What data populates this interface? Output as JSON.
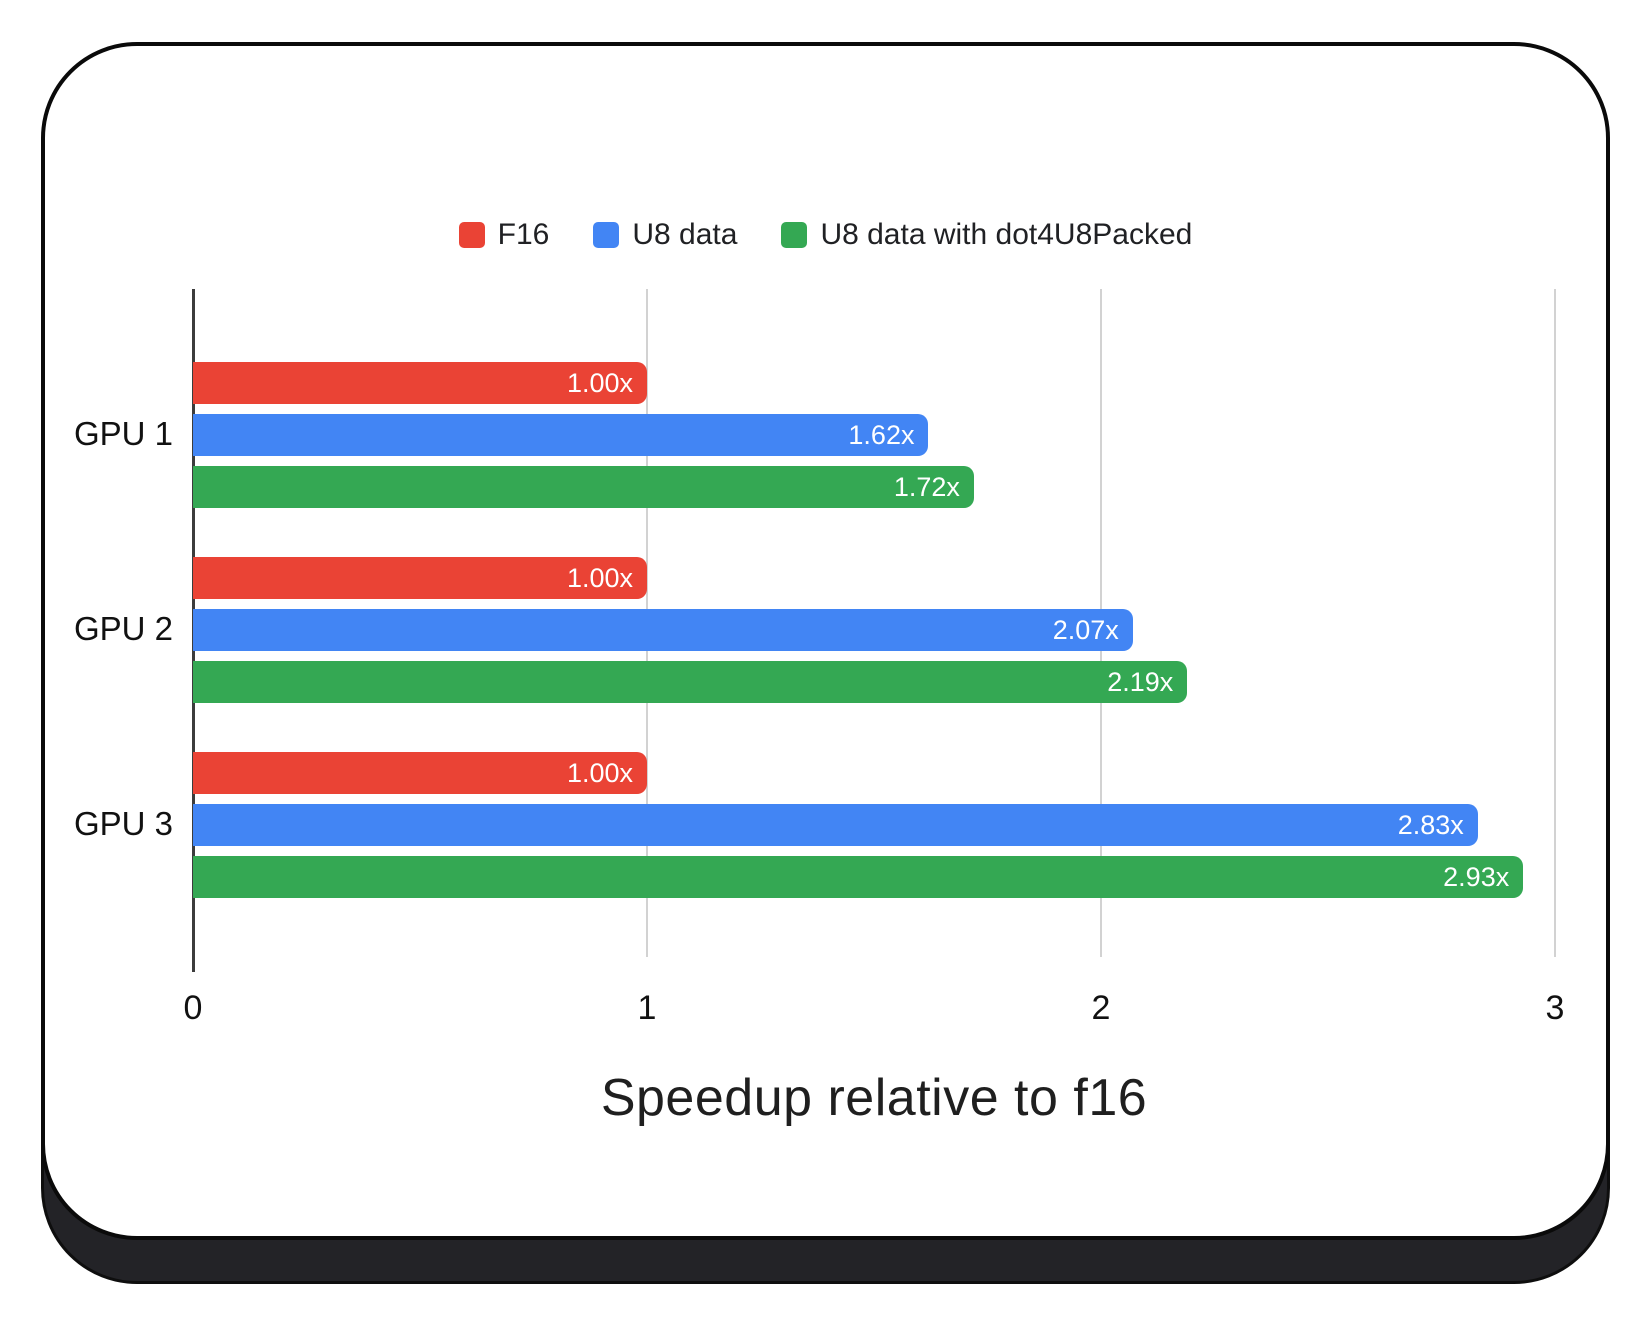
{
  "chart_data": {
    "type": "bar",
    "orientation": "horizontal",
    "title": "",
    "xlabel": "Speedup relative to f16",
    "ylabel": "",
    "categories": [
      "GPU 1",
      "GPU 2",
      "GPU 3"
    ],
    "series": [
      {
        "name": "F16",
        "color": "#EA4335",
        "values": [
          1.0,
          1.0,
          1.0
        ],
        "labels": [
          "1.00x",
          "1.00x",
          "1.00x"
        ]
      },
      {
        "name": "U8 data",
        "color": "#4285F4",
        "values": [
          1.62,
          2.07,
          2.83
        ],
        "labels": [
          "1.62x",
          "2.07x",
          "2.83x"
        ]
      },
      {
        "name": "U8 data with dot4U8Packed",
        "color": "#34A853",
        "values": [
          1.72,
          2.19,
          2.93
        ],
        "labels": [
          "1.72x",
          "2.19x",
          "2.93x"
        ]
      }
    ],
    "xlim": [
      0,
      3
    ],
    "x_ticks": [
      "0",
      "1",
      "2",
      "3"
    ],
    "grid": true,
    "legend_position": "top",
    "value_label_color": "#ffffff"
  },
  "card": {
    "background": "#ffffff",
    "border_color": "#0a0a0a",
    "shadow_color": "#232327"
  }
}
